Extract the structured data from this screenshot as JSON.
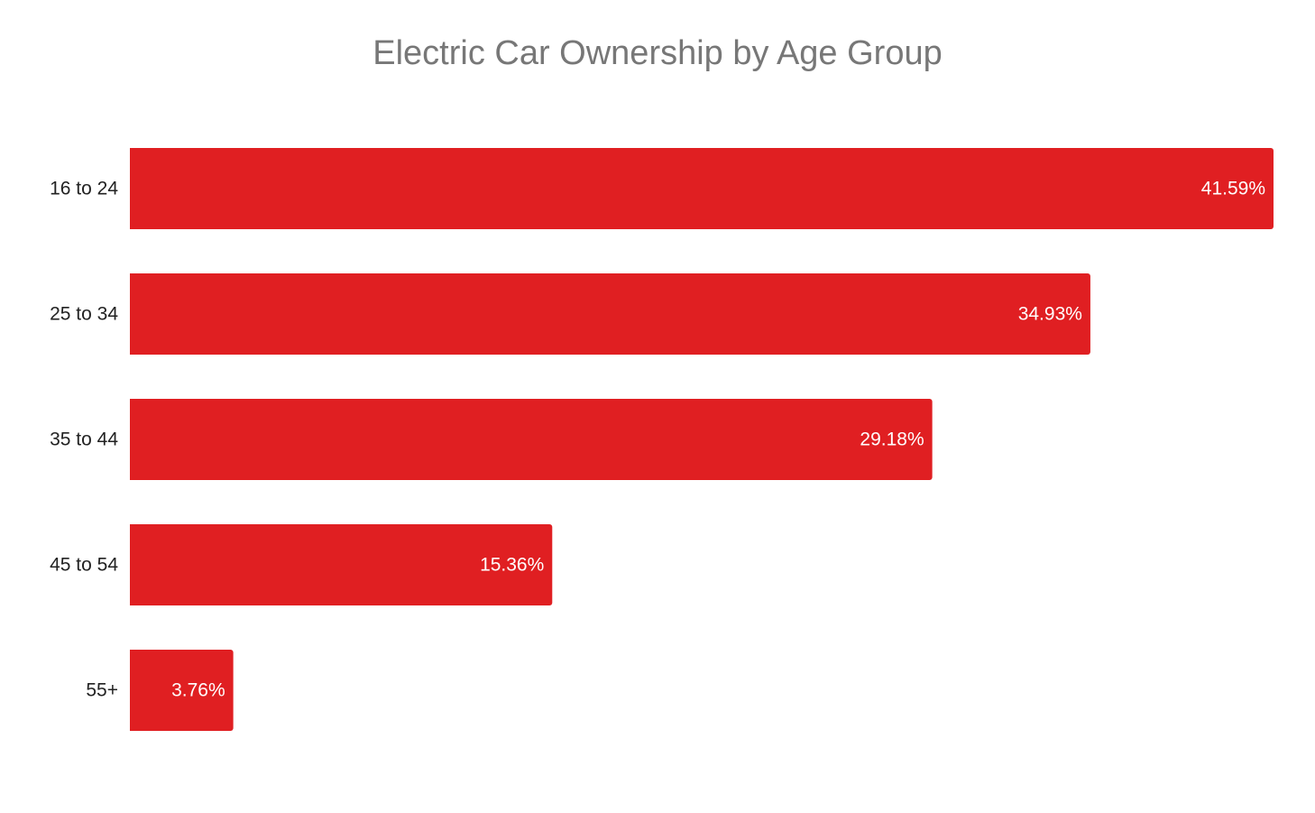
{
  "chart_data": {
    "type": "bar",
    "orientation": "horizontal",
    "title": "Electric Car Ownership by Age Group",
    "categories": [
      "16 to 24",
      "25 to 34",
      "35 to 44",
      "45 to 54",
      "55+"
    ],
    "values": [
      41.59,
      34.93,
      29.18,
      15.36,
      3.76
    ],
    "value_labels": [
      "41.59%",
      "34.93%",
      "29.18%",
      "15.36%",
      "3.76%"
    ],
    "unit": "%",
    "xlim": [
      0,
      41.59
    ],
    "bar_color": "#e01f22",
    "grid": false,
    "legend": "none"
  }
}
